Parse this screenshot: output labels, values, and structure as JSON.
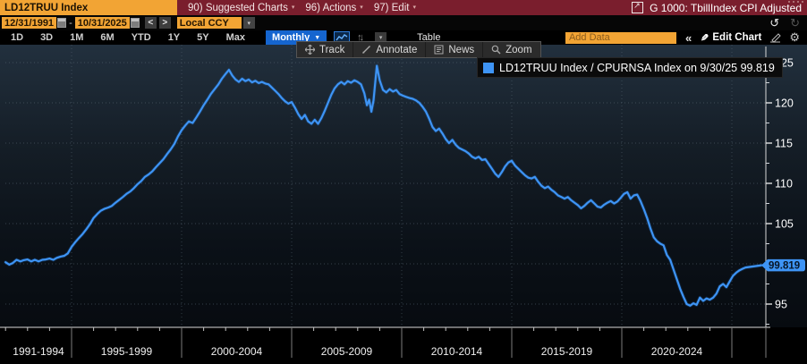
{
  "title_bar": {
    "ticker": "LD12TRUU Index",
    "menus": [
      {
        "label": "90) Suggested Charts"
      },
      {
        "label": "96) Actions"
      },
      {
        "label": "97) Edit"
      }
    ],
    "chart_title": "G 1000: TbillIndex CPI Adjusted"
  },
  "controls": {
    "date_from": "12/31/1991",
    "date_separator": "-",
    "date_to": "10/31/2025",
    "prev_label": "<",
    "next_label": ">",
    "currency": "Local CCY",
    "currency_caret": "▾",
    "mini_caret": "▾",
    "periods": [
      "1D",
      "3D",
      "1M",
      "6M",
      "YTD",
      "1Y",
      "5Y",
      "Max"
    ],
    "frequency": "Monthly",
    "frequency_caret": "▼",
    "updown_glyph": "↑↓",
    "table_label": "Table",
    "add_data_placeholder": "Add Data",
    "collapse_label": "«",
    "undo_glyph": "↺",
    "redo_glyph": "↻",
    "pencil_glyph": "✎",
    "gear_glyph": "⚙",
    "edit_chart_label": "Edit Chart"
  },
  "toolbar": {
    "buttons": [
      {
        "label": "Track",
        "icon": "track-move-icon"
      },
      {
        "label": "Annotate",
        "icon": "annotate-pencil-icon"
      },
      {
        "label": "News",
        "icon": "news-icon"
      },
      {
        "label": "Zoom",
        "icon": "zoom-magnifier-icon"
      }
    ]
  },
  "legend": {
    "text": "LD12TRUU Index / CPURNSA Index on 9/30/25 99.819",
    "swatch_color": "#3e94f5"
  },
  "colors": {
    "line": "#3e94f5",
    "badge_bg": "#3e94f5",
    "accent_orange": "#f2a434",
    "titlebar_red": "#7a1e2d",
    "frequency_blue": "#1565cf"
  },
  "chart_data": {
    "type": "line",
    "title": "LD12TRUU Index / CPURNSA Index",
    "legend_position": "top-right",
    "grid": true,
    "x_axis": {
      "section_labels": [
        "1991-1994",
        "1995-1999",
        "2000-2004",
        "2005-2009",
        "2010-2014",
        "2015-2019",
        "2020-2024"
      ],
      "section_boundary_years": [
        1995,
        2000,
        2005,
        2010,
        2015,
        2020,
        2025
      ],
      "range": [
        1992.0,
        2025.83
      ],
      "minor_tick_step_years": 1
    },
    "y_axis": {
      "tick_labels": [
        95,
        105,
        110,
        115,
        120,
        125
      ],
      "minor_ticks": [
        92.5,
        97.5,
        102.5,
        107.5,
        112.5,
        117.5,
        122.5
      ],
      "gridline_values": [
        95,
        100,
        105,
        110,
        115,
        120,
        125
      ],
      "range": [
        91.9,
        127.2
      ],
      "side": "right",
      "last_value": 99.819,
      "last_value_label": "99.819",
      "last_date": "9/30/25"
    },
    "series": [
      {
        "name": "LD12TRUU Index / CPURNSA Index",
        "color": "#3e94f5",
        "points": [
          [
            1992.0,
            100.2
          ],
          [
            1992.17,
            99.9
          ],
          [
            1992.33,
            100.1
          ],
          [
            1992.5,
            100.5
          ],
          [
            1992.67,
            100.3
          ],
          [
            1992.83,
            100.45
          ],
          [
            1993.0,
            100.55
          ],
          [
            1993.17,
            100.3
          ],
          [
            1993.33,
            100.5
          ],
          [
            1993.5,
            100.3
          ],
          [
            1993.67,
            100.5
          ],
          [
            1993.83,
            100.55
          ],
          [
            1994.0,
            100.65
          ],
          [
            1994.17,
            100.5
          ],
          [
            1994.33,
            100.75
          ],
          [
            1994.5,
            100.9
          ],
          [
            1994.67,
            101.0
          ],
          [
            1994.83,
            101.3
          ],
          [
            1995.0,
            102.1
          ],
          [
            1995.17,
            102.7
          ],
          [
            1995.33,
            103.2
          ],
          [
            1995.5,
            103.7
          ],
          [
            1995.67,
            104.3
          ],
          [
            1995.83,
            104.9
          ],
          [
            1996.0,
            105.7
          ],
          [
            1996.17,
            106.2
          ],
          [
            1996.33,
            106.6
          ],
          [
            1996.5,
            106.85
          ],
          [
            1996.67,
            107.0
          ],
          [
            1996.83,
            107.2
          ],
          [
            1997.0,
            107.6
          ],
          [
            1997.17,
            107.95
          ],
          [
            1997.33,
            108.3
          ],
          [
            1997.5,
            108.7
          ],
          [
            1997.67,
            109.0
          ],
          [
            1997.83,
            109.4
          ],
          [
            1998.0,
            109.9
          ],
          [
            1998.17,
            110.3
          ],
          [
            1998.33,
            110.8
          ],
          [
            1998.5,
            111.1
          ],
          [
            1998.67,
            111.5
          ],
          [
            1998.83,
            112.0
          ],
          [
            1999.0,
            112.5
          ],
          [
            1999.17,
            113.0
          ],
          [
            1999.33,
            113.6
          ],
          [
            1999.5,
            114.2
          ],
          [
            1999.67,
            114.9
          ],
          [
            1999.83,
            115.8
          ],
          [
            2000.0,
            116.6
          ],
          [
            2000.17,
            117.2
          ],
          [
            2000.33,
            117.7
          ],
          [
            2000.5,
            117.5
          ],
          [
            2000.67,
            118.2
          ],
          [
            2000.83,
            118.9
          ],
          [
            2001.0,
            119.7
          ],
          [
            2001.17,
            120.4
          ],
          [
            2001.33,
            121.1
          ],
          [
            2001.5,
            121.7
          ],
          [
            2001.67,
            122.3
          ],
          [
            2001.83,
            123.0
          ],
          [
            2002.0,
            123.6
          ],
          [
            2002.15,
            124.1
          ],
          [
            2002.3,
            123.4
          ],
          [
            2002.45,
            122.9
          ],
          [
            2002.6,
            122.6
          ],
          [
            2002.75,
            123.0
          ],
          [
            2002.9,
            122.7
          ],
          [
            2003.05,
            122.9
          ],
          [
            2003.2,
            122.55
          ],
          [
            2003.35,
            122.75
          ],
          [
            2003.5,
            122.45
          ],
          [
            2003.65,
            122.6
          ],
          [
            2003.8,
            122.4
          ],
          [
            2003.95,
            122.3
          ],
          [
            2004.1,
            121.9
          ],
          [
            2004.25,
            121.5
          ],
          [
            2004.4,
            121.1
          ],
          [
            2004.55,
            120.6
          ],
          [
            2004.7,
            120.2
          ],
          [
            2004.85,
            119.9
          ],
          [
            2005.0,
            120.1
          ],
          [
            2005.15,
            119.4
          ],
          [
            2005.3,
            118.6
          ],
          [
            2005.45,
            118.0
          ],
          [
            2005.6,
            118.5
          ],
          [
            2005.75,
            117.7
          ],
          [
            2005.9,
            117.4
          ],
          [
            2006.05,
            117.9
          ],
          [
            2006.2,
            117.4
          ],
          [
            2006.35,
            118.1
          ],
          [
            2006.5,
            119.0
          ],
          [
            2006.65,
            120.0
          ],
          [
            2006.8,
            121.0
          ],
          [
            2006.95,
            121.8
          ],
          [
            2007.1,
            122.3
          ],
          [
            2007.25,
            122.6
          ],
          [
            2007.4,
            122.3
          ],
          [
            2007.55,
            122.7
          ],
          [
            2007.7,
            122.5
          ],
          [
            2007.85,
            122.8
          ],
          [
            2008.0,
            122.6
          ],
          [
            2008.15,
            122.3
          ],
          [
            2008.3,
            121.2
          ],
          [
            2008.42,
            119.7
          ],
          [
            2008.52,
            120.4
          ],
          [
            2008.62,
            118.9
          ],
          [
            2008.72,
            120.3
          ],
          [
            2008.87,
            124.6
          ],
          [
            2009.0,
            122.8
          ],
          [
            2009.15,
            121.6
          ],
          [
            2009.3,
            121.3
          ],
          [
            2009.45,
            121.7
          ],
          [
            2009.6,
            121.4
          ],
          [
            2009.75,
            121.6
          ],
          [
            2009.9,
            121.1
          ],
          [
            2010.05,
            120.9
          ],
          [
            2010.2,
            120.75
          ],
          [
            2010.35,
            120.6
          ],
          [
            2010.5,
            120.5
          ],
          [
            2010.65,
            120.3
          ],
          [
            2010.8,
            120.0
          ],
          [
            2010.95,
            119.5
          ],
          [
            2011.1,
            118.9
          ],
          [
            2011.25,
            118.0
          ],
          [
            2011.4,
            117.0
          ],
          [
            2011.55,
            116.5
          ],
          [
            2011.7,
            116.8
          ],
          [
            2011.85,
            116.2
          ],
          [
            2012.0,
            115.5
          ],
          [
            2012.15,
            115.0
          ],
          [
            2012.3,
            115.4
          ],
          [
            2012.45,
            114.8
          ],
          [
            2012.6,
            114.4
          ],
          [
            2012.75,
            114.2
          ],
          [
            2012.9,
            114.0
          ],
          [
            2013.05,
            113.7
          ],
          [
            2013.2,
            113.3
          ],
          [
            2013.35,
            113.1
          ],
          [
            2013.5,
            113.3
          ],
          [
            2013.65,
            112.9
          ],
          [
            2013.8,
            113.0
          ],
          [
            2013.95,
            112.4
          ],
          [
            2014.1,
            111.8
          ],
          [
            2014.25,
            111.2
          ],
          [
            2014.4,
            110.8
          ],
          [
            2014.55,
            111.4
          ],
          [
            2014.7,
            112.1
          ],
          [
            2014.85,
            112.6
          ],
          [
            2015.0,
            112.8
          ],
          [
            2015.15,
            112.2
          ],
          [
            2015.3,
            111.8
          ],
          [
            2015.45,
            111.4
          ],
          [
            2015.6,
            111.0
          ],
          [
            2015.75,
            110.7
          ],
          [
            2015.9,
            110.6
          ],
          [
            2016.05,
            110.8
          ],
          [
            2016.2,
            110.2
          ],
          [
            2016.35,
            109.7
          ],
          [
            2016.5,
            109.4
          ],
          [
            2016.65,
            109.6
          ],
          [
            2016.8,
            109.2
          ],
          [
            2016.95,
            108.9
          ],
          [
            2017.1,
            108.5
          ],
          [
            2017.25,
            108.3
          ],
          [
            2017.4,
            108.1
          ],
          [
            2017.55,
            108.3
          ],
          [
            2017.7,
            107.9
          ],
          [
            2017.85,
            107.6
          ],
          [
            2018.0,
            107.3
          ],
          [
            2018.15,
            106.9
          ],
          [
            2018.3,
            107.2
          ],
          [
            2018.45,
            107.6
          ],
          [
            2018.6,
            107.9
          ],
          [
            2018.75,
            107.5
          ],
          [
            2018.9,
            107.1
          ],
          [
            2019.05,
            107.0
          ],
          [
            2019.2,
            107.35
          ],
          [
            2019.35,
            107.6
          ],
          [
            2019.5,
            107.8
          ],
          [
            2019.65,
            107.5
          ],
          [
            2019.8,
            107.75
          ],
          [
            2019.95,
            108.2
          ],
          [
            2020.1,
            108.7
          ],
          [
            2020.25,
            108.9
          ],
          [
            2020.4,
            108.1
          ],
          [
            2020.55,
            108.5
          ],
          [
            2020.7,
            108.6
          ],
          [
            2020.85,
            107.8
          ],
          [
            2021.0,
            106.8
          ],
          [
            2021.15,
            105.7
          ],
          [
            2021.3,
            104.4
          ],
          [
            2021.45,
            103.3
          ],
          [
            2021.6,
            102.8
          ],
          [
            2021.75,
            102.5
          ],
          [
            2021.9,
            102.3
          ],
          [
            2022.05,
            101.1
          ],
          [
            2022.2,
            100.5
          ],
          [
            2022.35,
            99.3
          ],
          [
            2022.5,
            98.1
          ],
          [
            2022.65,
            96.9
          ],
          [
            2022.8,
            95.9
          ],
          [
            2022.95,
            95.0
          ],
          [
            2023.1,
            94.8
          ],
          [
            2023.25,
            95.1
          ],
          [
            2023.4,
            94.9
          ],
          [
            2023.55,
            95.8
          ],
          [
            2023.7,
            95.4
          ],
          [
            2023.85,
            95.7
          ],
          [
            2024.0,
            95.55
          ],
          [
            2024.15,
            95.8
          ],
          [
            2024.3,
            96.3
          ],
          [
            2024.45,
            97.2
          ],
          [
            2024.6,
            97.5
          ],
          [
            2024.75,
            97.1
          ],
          [
            2024.9,
            97.8
          ],
          [
            2025.05,
            98.5
          ],
          [
            2025.2,
            98.9
          ],
          [
            2025.35,
            99.2
          ],
          [
            2025.5,
            99.4
          ],
          [
            2025.62,
            99.55
          ],
          [
            2025.75,
            99.819
          ]
        ]
      }
    ]
  }
}
